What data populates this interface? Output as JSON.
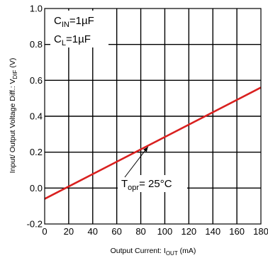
{
  "chart_data": {
    "type": "line",
    "xlabel": {
      "base": "Output Current: I",
      "sub": "OUT",
      "tail": " (mA)"
    },
    "ylabel": {
      "base": "Input/  Output Voltage Diff.: V",
      "sub": "DIF",
      "tail": " (V)"
    },
    "xlim": [
      0,
      180
    ],
    "ylim": [
      -0.2,
      1.0
    ],
    "xticks": [
      0,
      20,
      40,
      60,
      80,
      100,
      120,
      140,
      160,
      180
    ],
    "yticks": [
      -0.2,
      0.0,
      0.2,
      0.4,
      0.6,
      0.8,
      1.0
    ],
    "xtick_labels": [
      "0",
      "20",
      "40",
      "60",
      "80",
      "100",
      "120",
      "140",
      "160",
      "180"
    ],
    "ytick_labels": [
      "-0.2",
      "0.0",
      "0.2",
      "0.4",
      "0.6",
      "0.8",
      "1.0"
    ],
    "grid": true,
    "series": [
      {
        "color": "#d9201f",
        "x": [
          0,
          180
        ],
        "y": [
          -0.06,
          0.56
        ]
      }
    ],
    "annotations": [
      {
        "base": "C",
        "sub": "IN",
        "tail": "=1µF"
      },
      {
        "base": "C",
        "sub": "L",
        "tail": "=1µF"
      },
      {
        "base": "T",
        "sub": "opr",
        "tail": "= 25°C",
        "arrow_to": [
          86,
          0.23
        ]
      }
    ]
  }
}
